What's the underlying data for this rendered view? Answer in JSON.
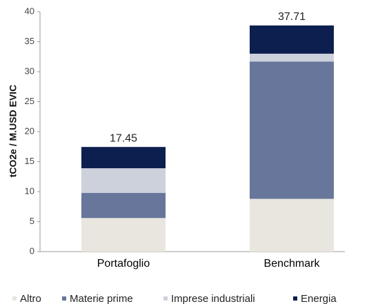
{
  "chart_data": {
    "type": "stacked_bar",
    "categories": [
      "Portafoglio",
      "Benchmark"
    ],
    "series": [
      {
        "name": "Altro",
        "color": "#e8e6df",
        "values": [
          5.6,
          8.8
        ]
      },
      {
        "name": "Materie prime",
        "color": "#67769a",
        "values": [
          4.2,
          22.9
        ]
      },
      {
        "name": "Imprese industriali",
        "color": "#cdd1dc",
        "values": [
          4.1,
          1.3
        ]
      },
      {
        "name": "Energia",
        "color": "#0c1f4f",
        "values": [
          3.55,
          4.71
        ]
      }
    ],
    "totals": [
      17.45,
      37.71
    ],
    "y_label": "tCO2e / M.USD EVIC",
    "ylim": [
      0,
      40
    ],
    "yticks": [
      0,
      5,
      10,
      15,
      20,
      25,
      30,
      35,
      40
    ],
    "grid": false,
    "legend": "bottom"
  }
}
